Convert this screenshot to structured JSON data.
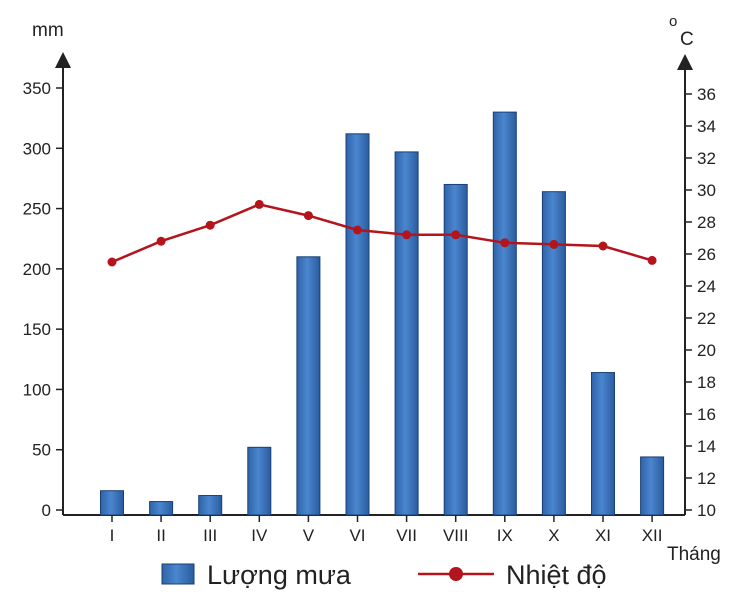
{
  "chart_data": {
    "type": "bar",
    "categories": [
      "I",
      "II",
      "III",
      "IV",
      "V",
      "VI",
      "VII",
      "VIII",
      "IX",
      "X",
      "XI",
      "XII"
    ],
    "series": [
      {
        "name": "Lượng mưa",
        "type": "bar",
        "axis": "left",
        "color": "#3a73bd",
        "values": [
          16,
          7,
          12,
          52,
          210,
          312,
          297,
          270,
          330,
          264,
          114,
          44
        ]
      },
      {
        "name": "Nhiệt độ",
        "type": "line",
        "axis": "right",
        "color": "#b4141c",
        "values": [
          25.5,
          26.8,
          27.8,
          29.1,
          28.4,
          27.5,
          27.2,
          27.2,
          26.7,
          26.6,
          26.5,
          25.6
        ]
      }
    ],
    "left_axis": {
      "unit": "mm",
      "ylim": [
        0,
        350
      ],
      "ticks": [
        "0",
        "50",
        "100",
        "150",
        "200",
        "250",
        "300",
        "350"
      ]
    },
    "right_axis": {
      "unit_degree": "o",
      "unit_letter": "C",
      "ylim": [
        10,
        36
      ],
      "ticks": [
        "10",
        "12",
        "14",
        "16",
        "18",
        "20",
        "22",
        "24",
        "26",
        "28",
        "30",
        "32",
        "34",
        "36"
      ]
    },
    "xlabel": "Tháng",
    "legend_position": "bottom",
    "grid": false
  }
}
